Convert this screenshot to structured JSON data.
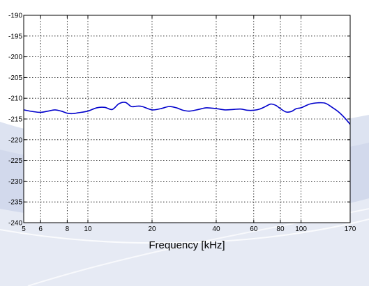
{
  "chart_data": {
    "type": "line",
    "title": "",
    "xlabel": "Frequency [kHz]",
    "ylabel": "",
    "x_scale": "log",
    "xlim": [
      5,
      170
    ],
    "ylim": [
      -240,
      -190
    ],
    "x_ticks": [
      5,
      6,
      8,
      10,
      20,
      40,
      60,
      80,
      100,
      170
    ],
    "x_tick_labels": [
      "5",
      "6",
      "8",
      "10",
      "20",
      "40",
      "60",
      "80",
      "100",
      "170"
    ],
    "y_ticks": [
      -190,
      -195,
      -200,
      -205,
      -210,
      -215,
      -220,
      -225,
      -230,
      -235,
      -240
    ],
    "y_tick_labels": [
      "-190",
      "-195",
      "-200",
      "-205",
      "-210",
      "-215",
      "-220",
      "-225",
      "-230",
      "-235",
      "-240"
    ],
    "grid": true,
    "series": [
      {
        "color": "#0000cc",
        "x": [
          5,
          5.5,
          6,
          6.5,
          7,
          7.5,
          8,
          8.5,
          9,
          10,
          11,
          12,
          13,
          14,
          15,
          16,
          17,
          18,
          20,
          22,
          24,
          26,
          28,
          30,
          33,
          36,
          40,
          44,
          48,
          52,
          56,
          60,
          64,
          68,
          72,
          76,
          80,
          85,
          90,
          95,
          100,
          110,
          120,
          130,
          140,
          150,
          160,
          170
        ],
        "y": [
          -212.8,
          -213.2,
          -213.4,
          -213.1,
          -212.8,
          -213.1,
          -213.6,
          -213.7,
          -213.5,
          -213.1,
          -212.3,
          -212.2,
          -212.7,
          -211.3,
          -211.0,
          -212.0,
          -211.9,
          -212.0,
          -212.8,
          -212.5,
          -212.0,
          -212.3,
          -212.9,
          -213.1,
          -212.7,
          -212.3,
          -212.5,
          -212.8,
          -212.7,
          -212.6,
          -212.9,
          -212.9,
          -212.6,
          -212.0,
          -211.4,
          -211.7,
          -212.5,
          -213.3,
          -213.2,
          -212.5,
          -212.3,
          -211.4,
          -211.1,
          -211.2,
          -212.2,
          -213.3,
          -214.7,
          -216.3
        ]
      }
    ]
  }
}
